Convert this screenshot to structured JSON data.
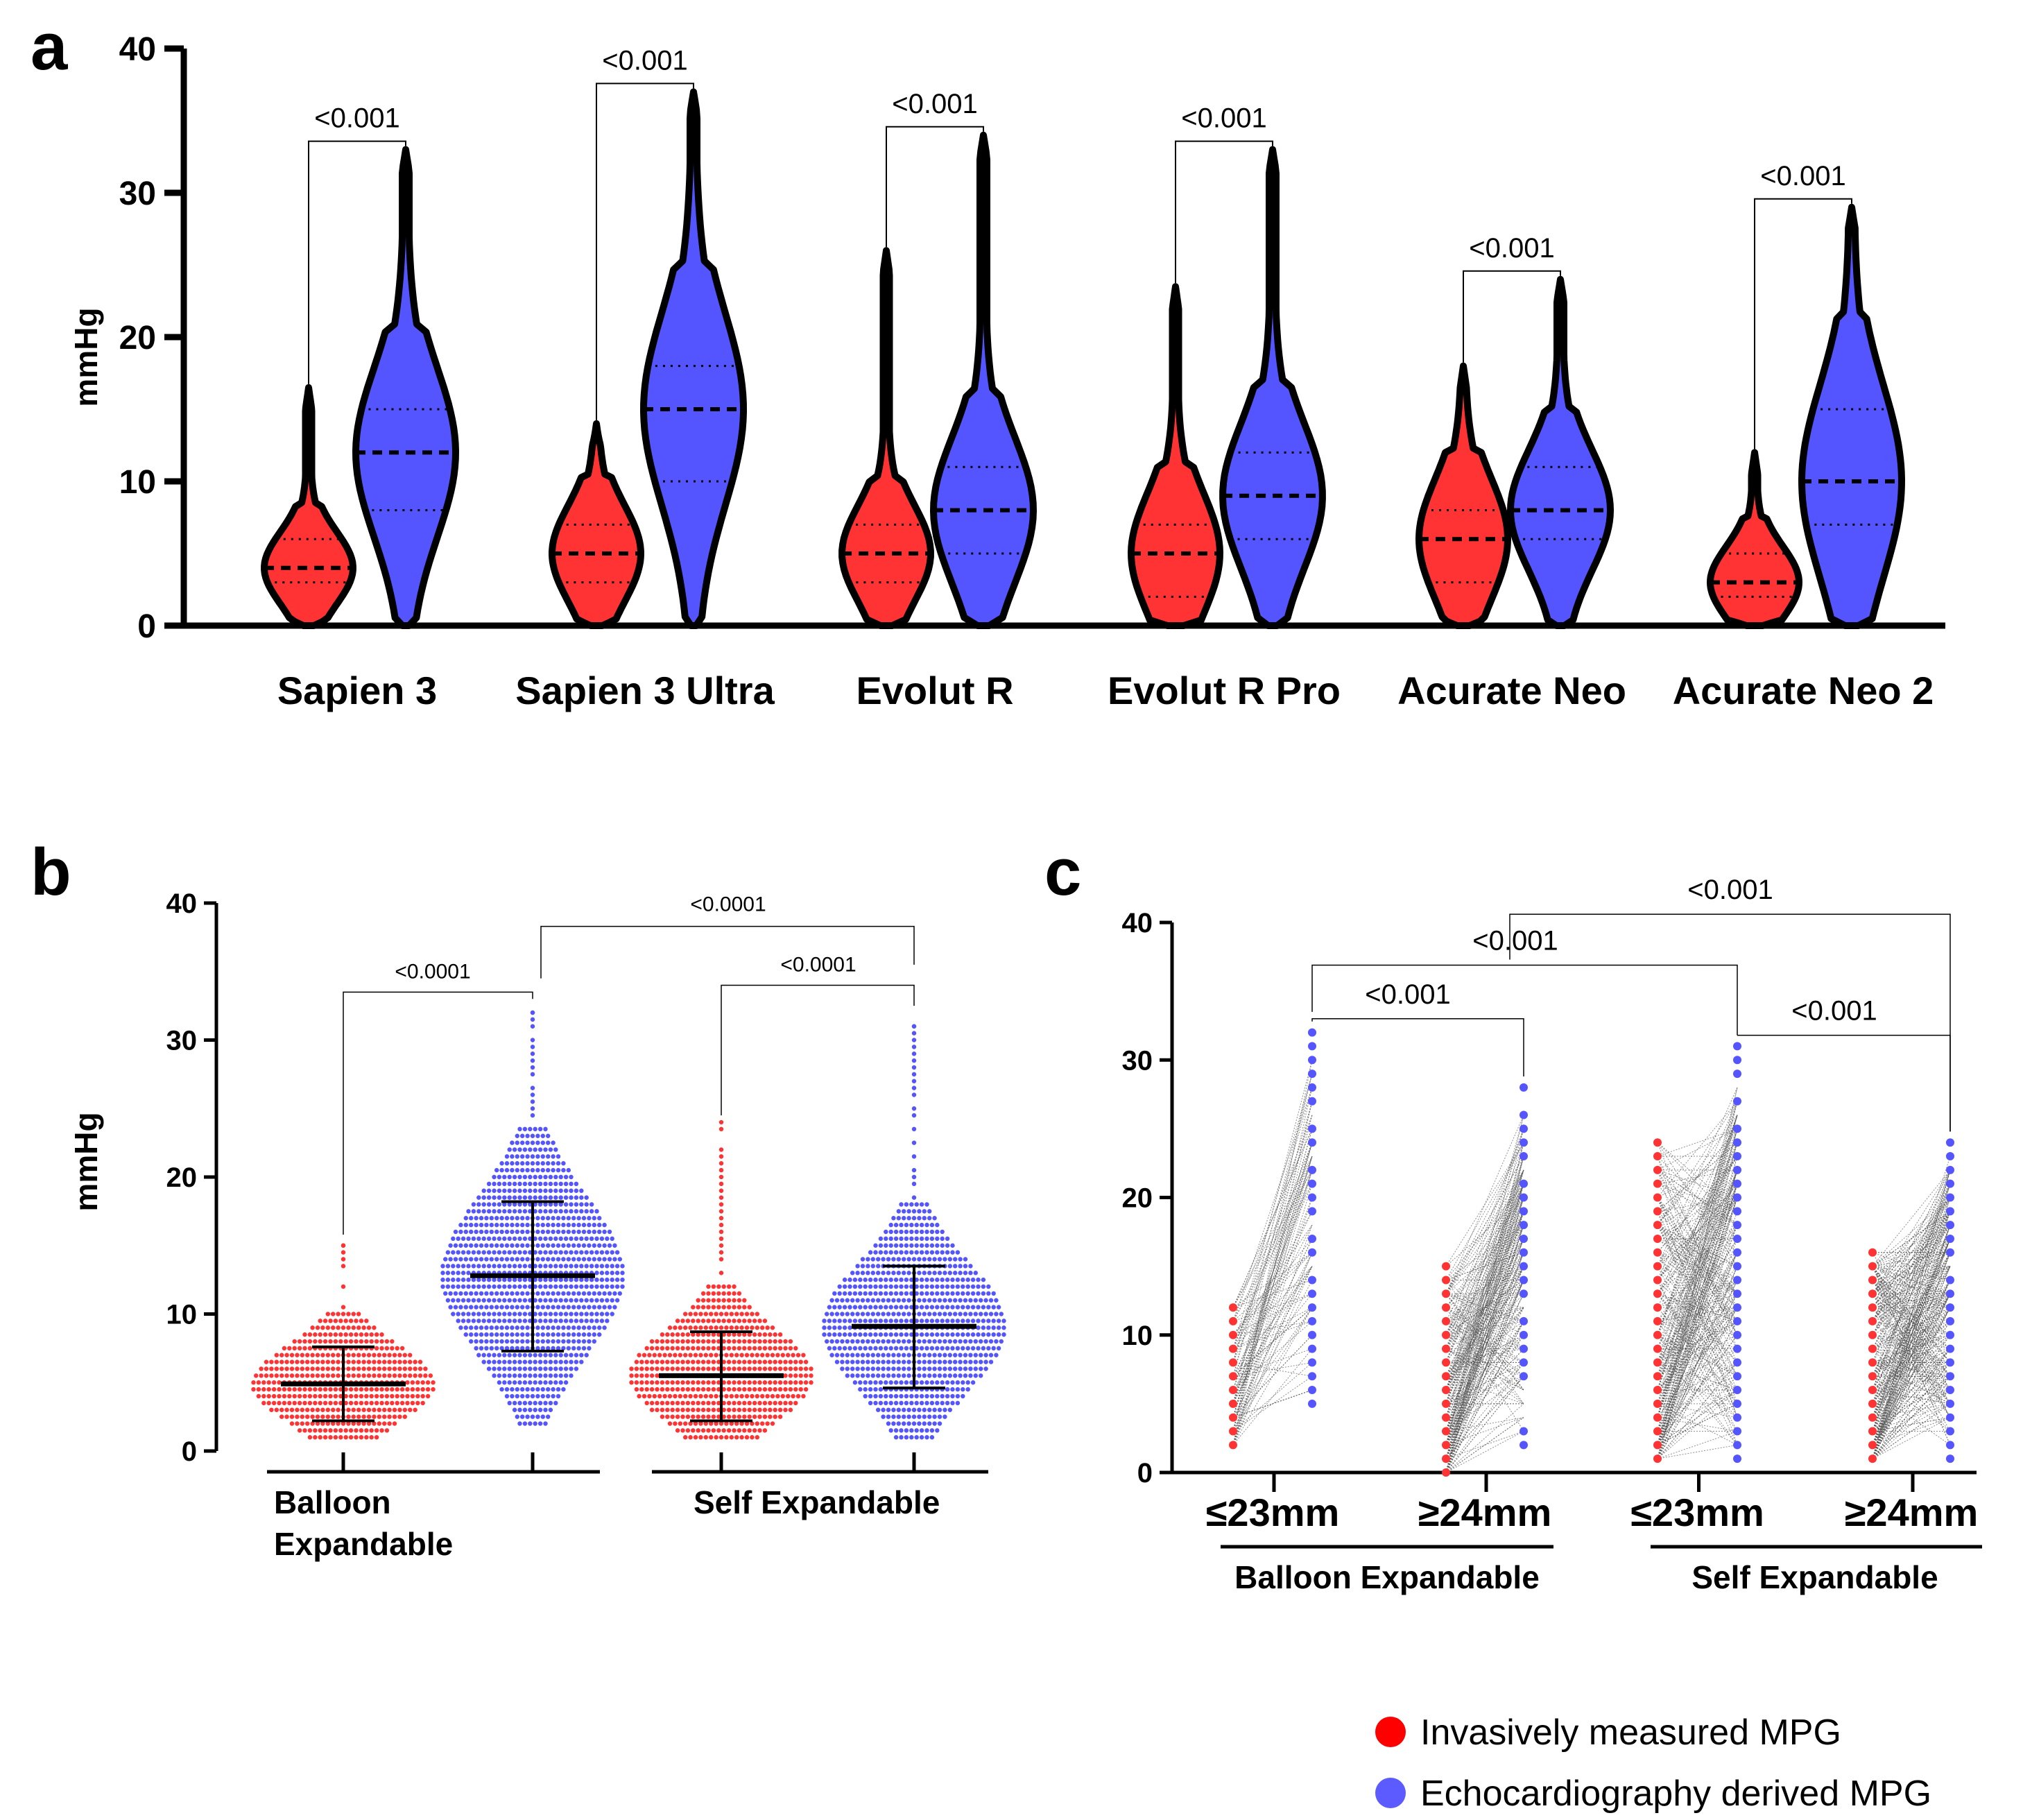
{
  "colors": {
    "invasive": "#ff3333",
    "echo": "#5555ff",
    "outline": "#000000",
    "pairline": "#555555",
    "legend_invasive": "#ff0000",
    "legend_echo": "#5b5bff"
  },
  "legend": {
    "invasive": "Invasively measured MPG",
    "echo": "Echocardiography derived MPG"
  },
  "chart_data": [
    {
      "panel": "a",
      "type": "violin",
      "ylabel": "mmHg",
      "ylim": [
        0,
        40
      ],
      "yticks": [
        "0",
        "10",
        "20",
        "30",
        "40"
      ],
      "categories": [
        "Sapien 3",
        "Sapien 3 Ultra",
        "Evolut R",
        "Evolut R Pro",
        "Acurate Neo",
        "Acurate Neo 2"
      ],
      "series": [
        {
          "name": "Invasively measured MPG",
          "median": [
            4,
            5,
            5,
            5,
            6,
            3
          ],
          "q1": [
            3,
            3,
            3,
            2,
            3,
            2
          ],
          "q3": [
            6,
            7,
            7,
            7,
            8,
            5
          ],
          "min": [
            0,
            0,
            0,
            0,
            0,
            0
          ],
          "max": [
            16.5,
            14,
            26,
            23.5,
            18,
            12
          ]
        },
        {
          "name": "Echocardiography derived MPG",
          "median": [
            12,
            15,
            8,
            9,
            8,
            10
          ],
          "q1": [
            8,
            10,
            5,
            6,
            6,
            7
          ],
          "q3": [
            15,
            18,
            11,
            12,
            11,
            15
          ],
          "min": [
            0,
            0,
            0,
            0,
            0,
            0
          ],
          "max": [
            33,
            37,
            34,
            33,
            24,
            29
          ]
        }
      ],
      "pvalues": [
        "<0.001",
        "<0.001",
        "<0.001",
        "<0.001",
        "<0.001",
        "<0.001"
      ]
    },
    {
      "panel": "b",
      "type": "scatter",
      "ylabel": "mmHg",
      "ylim": [
        0,
        40
      ],
      "yticks": [
        "0",
        "10",
        "20",
        "30",
        "40"
      ],
      "groups": [
        "Balloon\nExpandable",
        "Self Expandable"
      ],
      "columns": [
        {
          "group": "Balloon Expandable",
          "series": "Invasively measured MPG",
          "mean": 4.9,
          "sd_low": 2.2,
          "sd_high": 7.6,
          "max": 15,
          "min": 1
        },
        {
          "group": "Balloon Expandable",
          "series": "Echocardiography derived MPG",
          "mean": 12.8,
          "sd_low": 7.3,
          "sd_high": 18.2,
          "max": 32,
          "min": 2
        },
        {
          "group": "Self Expandable",
          "series": "Invasively measured MPG",
          "mean": 5.5,
          "sd_low": 2.2,
          "sd_high": 8.7,
          "max": 24,
          "min": 1
        },
        {
          "group": "Self Expandable",
          "series": "Echocardiography derived MPG",
          "mean": 9.1,
          "sd_low": 4.6,
          "sd_high": 13.5,
          "max": 31,
          "min": 1
        }
      ],
      "pvalues": [
        "<0.0001",
        "<0.0001",
        "<0.0001"
      ]
    },
    {
      "panel": "c",
      "type": "scatter",
      "ylim": [
        0,
        40
      ],
      "yticks": [
        "0",
        "10",
        "20",
        "30",
        "40"
      ],
      "categories": [
        "≤23mm",
        "≥24mm",
        "≤23mm",
        "≥24mm"
      ],
      "groups": [
        "Balloon Expandable",
        "Self Expandable"
      ],
      "columns": [
        {
          "invasive_range": [
            2,
            12
          ],
          "echo_range": [
            5,
            32
          ]
        },
        {
          "invasive_range": [
            0,
            15
          ],
          "echo_range": [
            2,
            28
          ]
        },
        {
          "invasive_range": [
            1,
            24
          ],
          "echo_range": [
            1,
            31
          ]
        },
        {
          "invasive_range": [
            1,
            16
          ],
          "echo_range": [
            1,
            24
          ]
        }
      ],
      "pvalues": [
        "<0.001",
        "<0.001",
        "<0.001",
        "<0.001"
      ]
    }
  ],
  "panel_labels": [
    "a",
    "b",
    "c"
  ]
}
